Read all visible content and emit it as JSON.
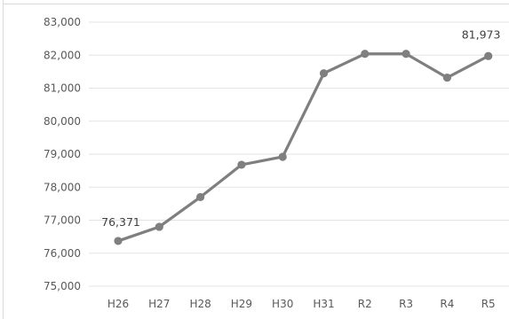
{
  "chart_data": {
    "type": "line",
    "title": "",
    "xlabel": "",
    "ylabel": "",
    "categories": [
      "H26",
      "H27",
      "H28",
      "H29",
      "H30",
      "H31",
      "R2",
      "R3",
      "R4",
      "R5"
    ],
    "series": [
      {
        "values": [
          76371,
          76800,
          77700,
          78680,
          78920,
          81450,
          82040,
          82040,
          81320,
          81973
        ]
      }
    ],
    "data_labels": [
      {
        "index": 0,
        "text": "76,371"
      },
      {
        "index": 9,
        "text": "81,973"
      }
    ],
    "ylim": [
      75000,
      83000
    ],
    "y_ticks": [
      75000,
      76000,
      77000,
      78000,
      79000,
      80000,
      81000,
      82000,
      83000
    ],
    "y_tick_labels": [
      "75,000",
      "76,000",
      "77,000",
      "78,000",
      "79,000",
      "80,000",
      "81,000",
      "82,000",
      "83,000"
    ],
    "grid": true,
    "legend": "none",
    "colors": {
      "line": "#7f7f7f",
      "marker": "#7f7f7f",
      "grid": "#e3e3e3",
      "text": "#595959"
    }
  }
}
